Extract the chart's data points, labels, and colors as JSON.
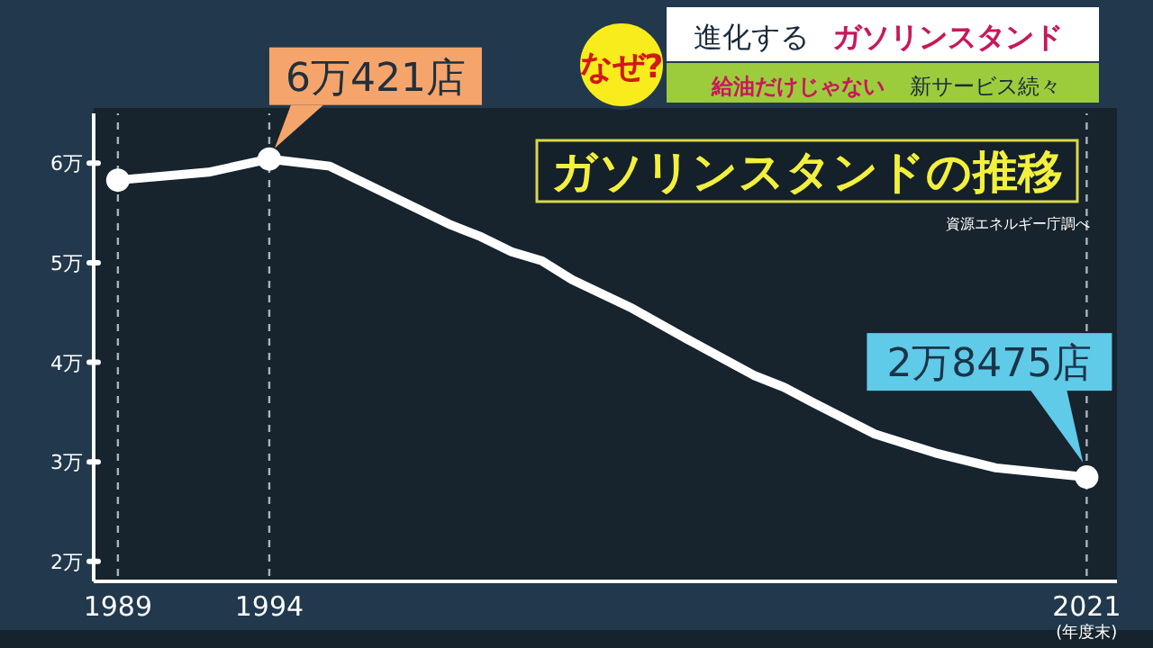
{
  "chart_data": {
    "type": "line",
    "title": "ガソリンスタンドの推移",
    "xlabel": "(年度末)",
    "series": [
      {
        "type": "line",
        "color": "#ffffff",
        "marker": "none",
        "x": [
          1989,
          1992,
          1994,
          1996,
          2000,
          2001,
          2002,
          2003,
          2004,
          2006,
          2008,
          2010,
          2011,
          2012,
          2014,
          2016,
          2018,
          2021
        ],
        "values": [
          5.83,
          5.91,
          6.0421,
          5.97,
          5.38,
          5.26,
          5.11,
          5.02,
          4.83,
          4.54,
          4.2,
          3.87,
          3.75,
          3.59,
          3.28,
          3.09,
          2.94,
          2.8475
        ]
      },
      {
        "type": "scatter",
        "color": "#ffffff",
        "marker": "circle",
        "x": [
          1989,
          1994,
          2021
        ],
        "values": [
          5.83,
          6.0421,
          2.8475
        ]
      }
    ],
    "xlim": [
      1988.2,
      2022
    ],
    "xticks": [
      1989,
      1994,
      2021
    ],
    "ylim": [
      1.8,
      6.5
    ],
    "yticks": [
      {
        "value": 2,
        "label": "2万"
      },
      {
        "value": 3,
        "label": "3万"
      },
      {
        "value": 4,
        "label": "4万"
      },
      {
        "value": 5,
        "label": "5万"
      },
      {
        "value": 6,
        "label": "6万"
      }
    ],
    "ref_lines": [
      {
        "axis": "x",
        "value": 1989,
        "line_style": "dashed",
        "color": "#aab4bc"
      },
      {
        "axis": "x",
        "value": 1994,
        "line_style": "dashed",
        "color": "#aab4bc"
      },
      {
        "axis": "x",
        "value": 2021,
        "line_style": "dashed",
        "color": "#aab4bc"
      }
    ],
    "annotations": [
      "なぜ?",
      "進化する",
      "ガソリンスタンド",
      "給油だけじゃない",
      "新サービス続々",
      "資源エネルギー庁調べ",
      {
        "text": "6万421店",
        "x": 1994,
        "y": 6.0421
      },
      {
        "text": "2万8475店",
        "x": 2021,
        "y": 2.8475
      }
    ]
  }
}
